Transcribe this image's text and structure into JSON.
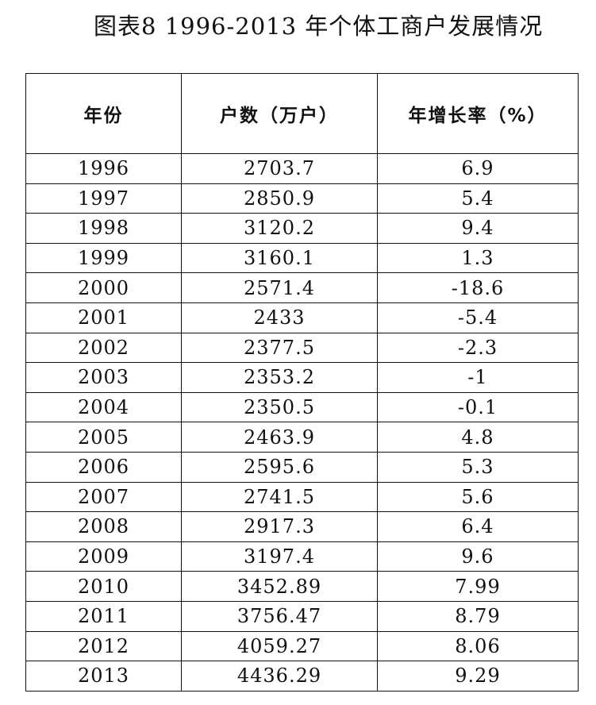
{
  "title": "图表8 1996-2013 年个体工商户发展情况",
  "table": {
    "headers": [
      "年份",
      "户数（万户）",
      "年增长率（%）"
    ],
    "rows": [
      [
        "1996",
        "2703.7",
        "6.9"
      ],
      [
        "1997",
        "2850.9",
        "5.4"
      ],
      [
        "1998",
        "3120.2",
        "9.4"
      ],
      [
        "1999",
        "3160.1",
        "1.3"
      ],
      [
        "2000",
        "2571.4",
        "-18.6"
      ],
      [
        "2001",
        "2433",
        "-5.4"
      ],
      [
        "2002",
        "2377.5",
        "-2.3"
      ],
      [
        "2003",
        "2353.2",
        "-1"
      ],
      [
        "2004",
        "2350.5",
        "-0.1"
      ],
      [
        "2005",
        "2463.9",
        "4.8"
      ],
      [
        "2006",
        "2595.6",
        "5.3"
      ],
      [
        "2007",
        "2741.5",
        "5.6"
      ],
      [
        "2008",
        "2917.3",
        "6.4"
      ],
      [
        "2009",
        "3197.4",
        "9.6"
      ],
      [
        "2010",
        "3452.89",
        "7.99"
      ],
      [
        "2011",
        "3756.47",
        "8.79"
      ],
      [
        "2012",
        "4059.27",
        "8.06"
      ],
      [
        "2013",
        "4436.29",
        "9.29"
      ]
    ]
  }
}
